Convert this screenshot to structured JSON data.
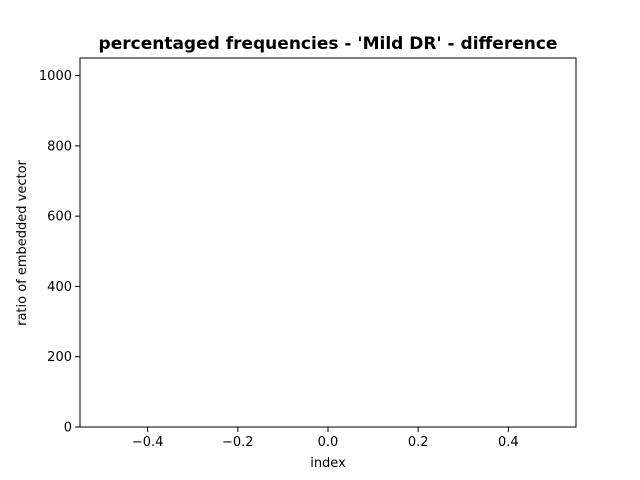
{
  "chart_data": {
    "type": "bar",
    "title": "percentaged frequencies - 'Mild DR' - difference",
    "xlabel": "index",
    "ylabel": "ratio of embedded vector",
    "xlim": [
      -0.55,
      0.55
    ],
    "ylim": [
      0,
      1050
    ],
    "x_ticks": [
      -0.4,
      -0.2,
      0.0,
      0.2,
      0.4
    ],
    "x_tick_labels": [
      "−0.4",
      "−0.2",
      "0.0",
      "0.2",
      "0.4"
    ],
    "y_ticks": [
      0,
      200,
      400,
      600,
      800,
      1000
    ],
    "y_tick_labels": [
      "0",
      "200",
      "400",
      "600",
      "800",
      "1000"
    ],
    "categories": [],
    "values": [],
    "grid": false,
    "legend": "none"
  }
}
